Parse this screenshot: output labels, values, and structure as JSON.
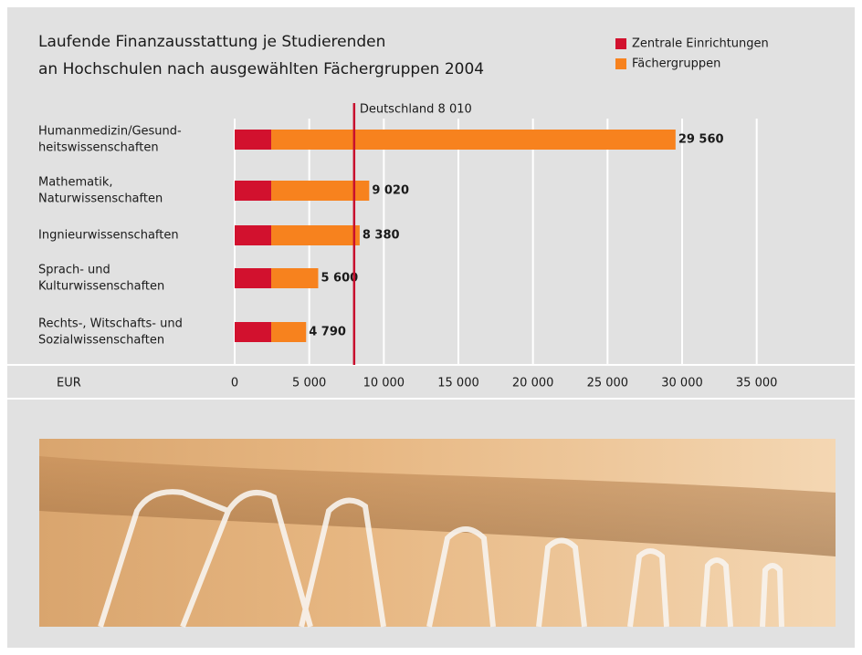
{
  "chart_data": {
    "type": "bar",
    "orientation": "horizontal",
    "stacked": true,
    "title": [
      "Laufende Finanzausstattung je Studierenden",
      "an Hochschulen nach ausgewählten Fächergruppen 2004"
    ],
    "categories": [
      [
        "Humanmedizin/Gesund-",
        "heitswissenschaften"
      ],
      [
        "Mathematik,",
        "Naturwissenschaften"
      ],
      [
        "Ingnieurwissenschaften"
      ],
      [
        "Sprach- und",
        "Kulturwissenschaften"
      ],
      [
        "Rechts-, Witschafts- und",
        "Sozialwissenschaften"
      ]
    ],
    "series": [
      {
        "name": "Zentrale Einrichtungen",
        "color": "#d2112e",
        "values": [
          2450,
          2450,
          2450,
          2450,
          2450
        ]
      },
      {
        "name": "Fächergruppen",
        "color": "#f7821e",
        "values": [
          27110,
          6570,
          5930,
          3150,
          2340
        ]
      }
    ],
    "totals": [
      29560,
      9020,
      8380,
      5600,
      4790
    ],
    "total_labels": [
      "29 560",
      "9 020",
      "8 380",
      "5 600",
      "4 790"
    ],
    "reference": {
      "value": 8010,
      "label": "Deutschland 8 010",
      "color": "#c8102e"
    },
    "x_label": "EUR",
    "xlim": [
      0,
      36000
    ],
    "xticks": [
      0,
      {
        "value": 5000,
        "label": "5 000"
      },
      {
        "value": 10000,
        "label": "10 000"
      },
      {
        "value": 15000,
        "label": "15 000"
      },
      {
        "value": 20000,
        "label": "20 000"
      },
      {
        "value": 25000,
        "label": "25 000"
      },
      {
        "value": 30000,
        "label": "30 000"
      },
      {
        "value": 35000,
        "label": "35 000"
      }
    ],
    "grid": true,
    "legend": "top-right"
  }
}
